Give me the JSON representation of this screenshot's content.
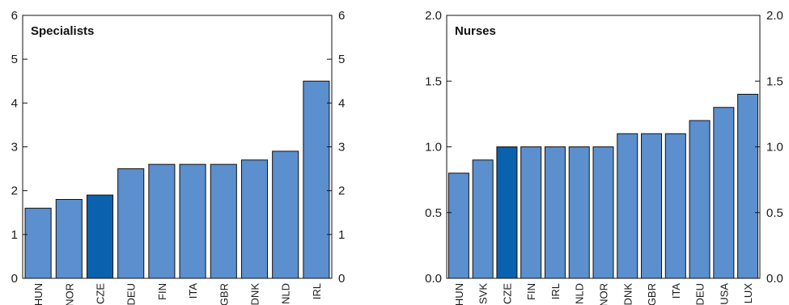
{
  "chart_data": [
    {
      "type": "bar",
      "title": "Specialists",
      "categories": [
        "HUN",
        "NOR",
        "CZE",
        "DEU",
        "FIN",
        "ITA",
        "GBR",
        "DNK",
        "NLD",
        "IRL"
      ],
      "values": [
        1.6,
        1.8,
        1.9,
        2.5,
        2.6,
        2.6,
        2.6,
        2.7,
        2.9,
        4.5
      ],
      "highlight": "CZE",
      "ylim": [
        0,
        6
      ],
      "yticks": [
        "0",
        "1",
        "2",
        "3",
        "4",
        "5",
        "6"
      ],
      "grid": false,
      "bar_color": "#5b8fce",
      "highlight_color": "#0a61ad"
    },
    {
      "type": "bar",
      "title": "Nurses",
      "categories": [
        "HUN",
        "SVK",
        "CZE",
        "FIN",
        "IRL",
        "NLD",
        "NOR",
        "DNK",
        "GBR",
        "ITA",
        "DEU",
        "USA",
        "LUX"
      ],
      "values": [
        0.8,
        0.9,
        1.0,
        1.0,
        1.0,
        1.0,
        1.0,
        1.1,
        1.1,
        1.1,
        1.2,
        1.3,
        1.4
      ],
      "highlight": "CZE",
      "ylim": [
        0,
        2
      ],
      "yticks": [
        "0.0",
        "0.5",
        "1.0",
        "1.5",
        "2.0"
      ],
      "grid": false,
      "bar_color": "#5b8fce",
      "highlight_color": "#0a61ad"
    }
  ]
}
